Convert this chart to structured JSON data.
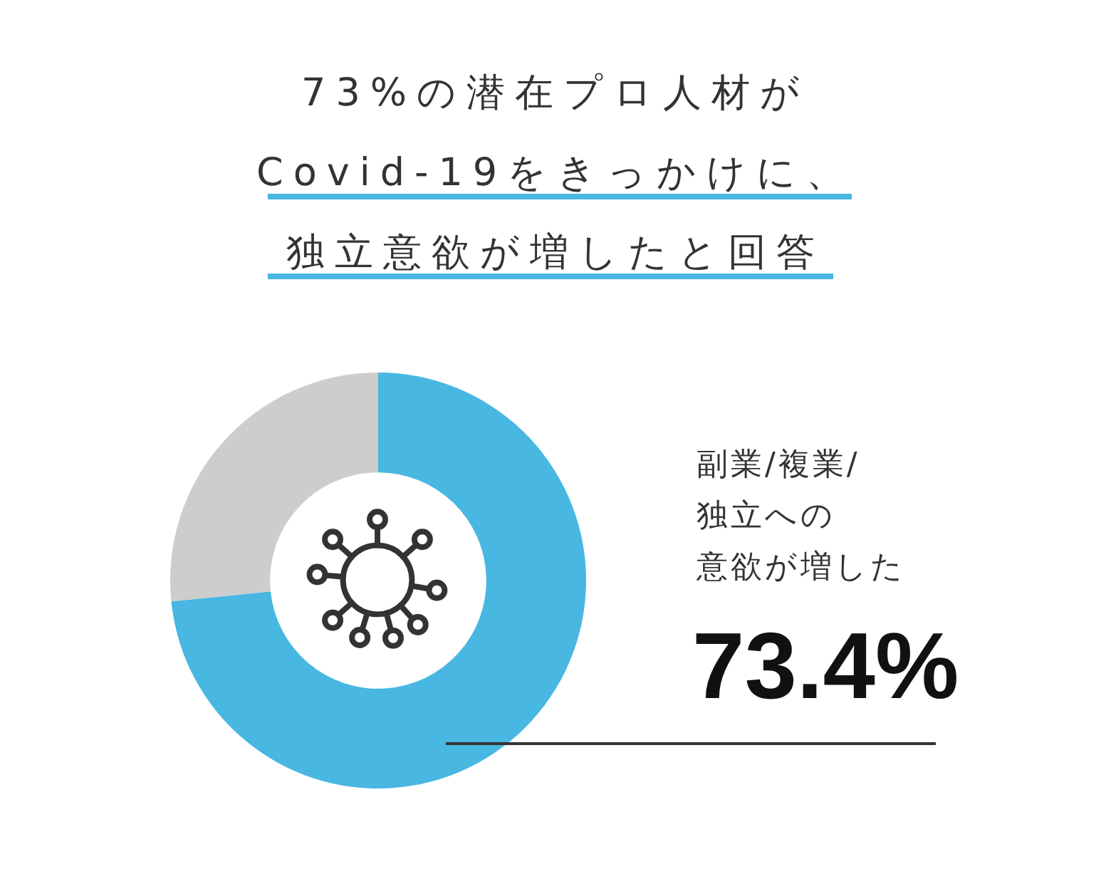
{
  "chart_data": {
    "type": "donut",
    "title": "73%の潜在プロ人材がCovid-19をきっかけに、独立意欲が増したと回答",
    "categories": [
      "副業/複業/独立への意欲が増した",
      null
    ],
    "values": [
      73.4,
      26.6
    ],
    "colors": [
      "#48b7e1",
      "#cdcdcd"
    ],
    "value_labels": [
      "73.4%",
      null
    ],
    "legend": false
  }
}
